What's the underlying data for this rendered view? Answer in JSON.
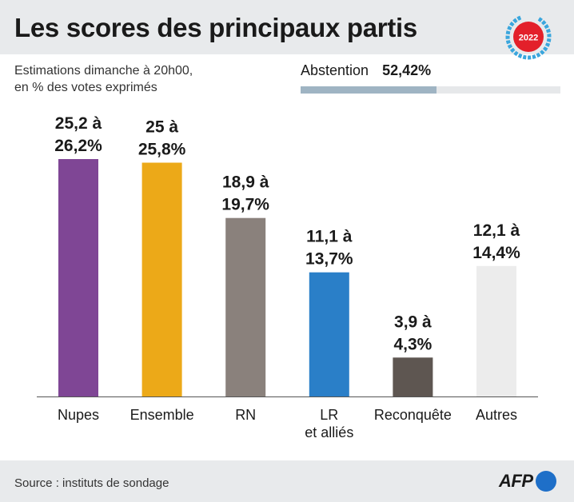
{
  "header": {
    "title": "Les scores des principaux partis",
    "badge_year": "2022"
  },
  "subtitle": {
    "line1": "Estimations dimanche à 20h00,",
    "line2": "en % des votes exprimés"
  },
  "abstention": {
    "label": "Abstention",
    "value_text": "52,42%",
    "value": 52.42
  },
  "chart_data": {
    "type": "bar",
    "categories": [
      "Nupes",
      "Ensemble",
      "RN",
      "LR et alliés",
      "Reconquête",
      "Autres"
    ],
    "category_lines": [
      [
        "Nupes"
      ],
      [
        "Ensemble"
      ],
      [
        "RN"
      ],
      [
        "LR",
        "et alliés"
      ],
      [
        "Reconquête"
      ],
      [
        "Autres"
      ]
    ],
    "values": [
      26.2,
      25.8,
      19.7,
      13.7,
      4.3,
      14.4
    ],
    "ranges": [
      [
        25.2,
        26.2
      ],
      [
        25,
        25.8
      ],
      [
        18.9,
        19.7
      ],
      [
        11.1,
        13.7
      ],
      [
        3.9,
        4.3
      ],
      [
        12.1,
        14.4
      ]
    ],
    "labels": [
      [
        "25,2 à",
        "26,2%"
      ],
      [
        "25 à",
        "25,8%"
      ],
      [
        "18,9 à",
        "19,7%"
      ],
      [
        "11,1 à",
        "13,7%"
      ],
      [
        "3,9 à",
        "4,3%"
      ],
      [
        "12,1 à",
        "14,4%"
      ]
    ],
    "colors": [
      "#7f4695",
      "#eca918",
      "#8a817c",
      "#2a7fc8",
      "#5e5651",
      "#ececec"
    ],
    "ylim": [
      0,
      26.2
    ],
    "grid": false
  },
  "footer": {
    "source": "Source : instituts de sondage",
    "logo_text": "AFP"
  }
}
